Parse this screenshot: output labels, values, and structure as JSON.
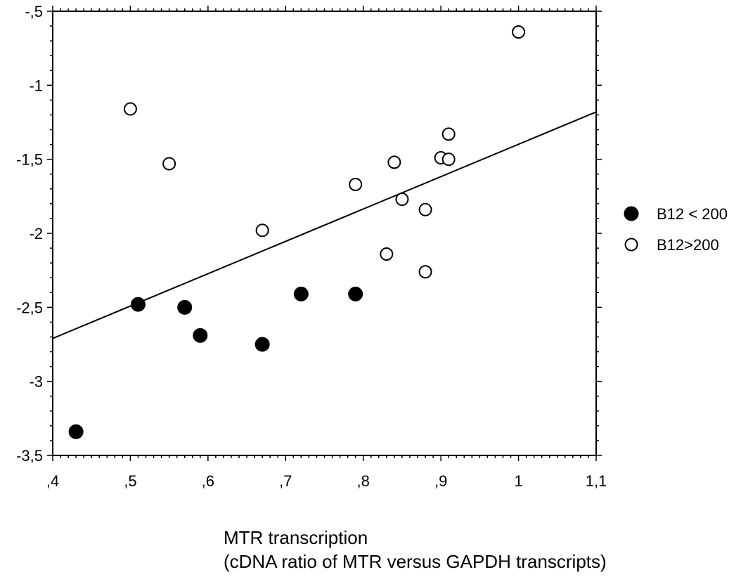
{
  "chart_data": {
    "type": "scatter",
    "title": "",
    "xlabel": [
      "MTR transcription",
      "(cDNA ratio of MTR versus GAPDH transcripts)"
    ],
    "ylabel": "",
    "xlim": [
      0.4,
      1.1
    ],
    "ylim": [
      -3.5,
      -0.5
    ],
    "x_ticks": [
      {
        "value": 0.4,
        "label": ",4"
      },
      {
        "value": 0.5,
        "label": ",5"
      },
      {
        "value": 0.6,
        "label": ",6"
      },
      {
        "value": 0.7,
        "label": ",7"
      },
      {
        "value": 0.8,
        "label": ",8"
      },
      {
        "value": 0.9,
        "label": ",9"
      },
      {
        "value": 1.0,
        "label": "1"
      },
      {
        "value": 1.1,
        "label": "1,1"
      }
    ],
    "y_ticks": [
      {
        "value": -0.5,
        "label": "-,5"
      },
      {
        "value": -1.0,
        "label": "-1"
      },
      {
        "value": -1.5,
        "label": "-1,5"
      },
      {
        "value": -2.0,
        "label": "-2"
      },
      {
        "value": -2.5,
        "label": "-2,5"
      },
      {
        "value": -3.0,
        "label": "-3"
      },
      {
        "value": -3.5,
        "label": "-3,5"
      }
    ],
    "grid": false,
    "legend_position": "right",
    "series": [
      {
        "name": "B12 < 200",
        "marker": "filled-circle",
        "color": "#000000",
        "points": [
          {
            "x": 0.43,
            "y": -3.34
          },
          {
            "x": 0.51,
            "y": -2.48
          },
          {
            "x": 0.57,
            "y": -2.5
          },
          {
            "x": 0.59,
            "y": -2.69
          },
          {
            "x": 0.67,
            "y": -2.75
          },
          {
            "x": 0.72,
            "y": -2.41
          },
          {
            "x": 0.79,
            "y": -2.41
          }
        ]
      },
      {
        "name": "B12>200",
        "marker": "open-circle",
        "color": "#000000",
        "points": [
          {
            "x": 0.5,
            "y": -1.16
          },
          {
            "x": 0.55,
            "y": -1.53
          },
          {
            "x": 0.67,
            "y": -1.98
          },
          {
            "x": 0.79,
            "y": -1.67
          },
          {
            "x": 0.83,
            "y": -2.14
          },
          {
            "x": 0.84,
            "y": -1.52
          },
          {
            "x": 0.85,
            "y": -1.77
          },
          {
            "x": 0.88,
            "y": -1.84
          },
          {
            "x": 0.88,
            "y": -2.26
          },
          {
            "x": 0.9,
            "y": -1.49
          },
          {
            "x": 0.91,
            "y": -1.33
          },
          {
            "x": 0.91,
            "y": -1.5
          },
          {
            "x": 1.0,
            "y": -0.64
          }
        ]
      }
    ],
    "regression_line": {
      "x": [
        0.4,
        1.1
      ],
      "y": [
        -2.71,
        -1.18
      ]
    }
  }
}
